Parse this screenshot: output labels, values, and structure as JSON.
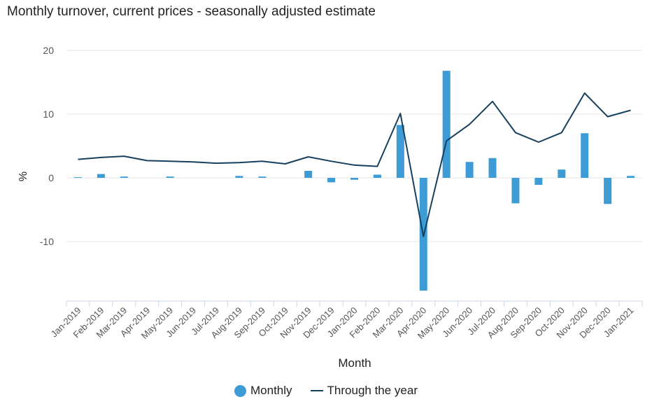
{
  "chart_data": {
    "type": "bar+line",
    "title": "Monthly turnover, current prices - seasonally adjusted estimate",
    "xlabel": "Month",
    "ylabel": "%",
    "ylim": [
      -19,
      20
    ],
    "yticks": [
      20,
      10,
      0,
      -10
    ],
    "categories": [
      "Jan-2019",
      "Feb-2019",
      "Mar-2019",
      "Apr-2019",
      "May-2019",
      "Jun-2019",
      "Jul-2019",
      "Aug-2019",
      "Sep-2019",
      "Oct-2019",
      "Nov-2019",
      "Dec-2019",
      "Jan-2020",
      "Feb-2020",
      "Mar-2020",
      "Apr-2020",
      "May-2020",
      "Jun-2020",
      "Jul-2020",
      "Aug-2020",
      "Sep-2020",
      "Oct-2020",
      "Nov-2020",
      "Dec-2020",
      "Jan-2021"
    ],
    "series": [
      {
        "name": "Monthly",
        "type": "bar",
        "color": "#3d9bd6",
        "values": [
          0.1,
          0.6,
          0.2,
          0.0,
          0.2,
          0.0,
          0.0,
          0.3,
          0.2,
          0.0,
          1.1,
          -0.7,
          -0.3,
          0.5,
          8.3,
          -17.7,
          16.8,
          2.5,
          3.1,
          -4.0,
          -1.1,
          1.3,
          7.0,
          -4.1,
          0.3
        ]
      },
      {
        "name": "Through the year",
        "type": "line",
        "color": "#17405f",
        "values": [
          2.9,
          3.2,
          3.4,
          2.7,
          2.6,
          2.5,
          2.3,
          2.4,
          2.6,
          2.2,
          3.3,
          2.6,
          2.0,
          1.8,
          10.1,
          -9.2,
          5.8,
          8.4,
          12.0,
          7.1,
          5.6,
          7.1,
          13.3,
          9.6,
          10.6
        ]
      }
    ],
    "legend_position": "bottom-center",
    "grid": true
  }
}
